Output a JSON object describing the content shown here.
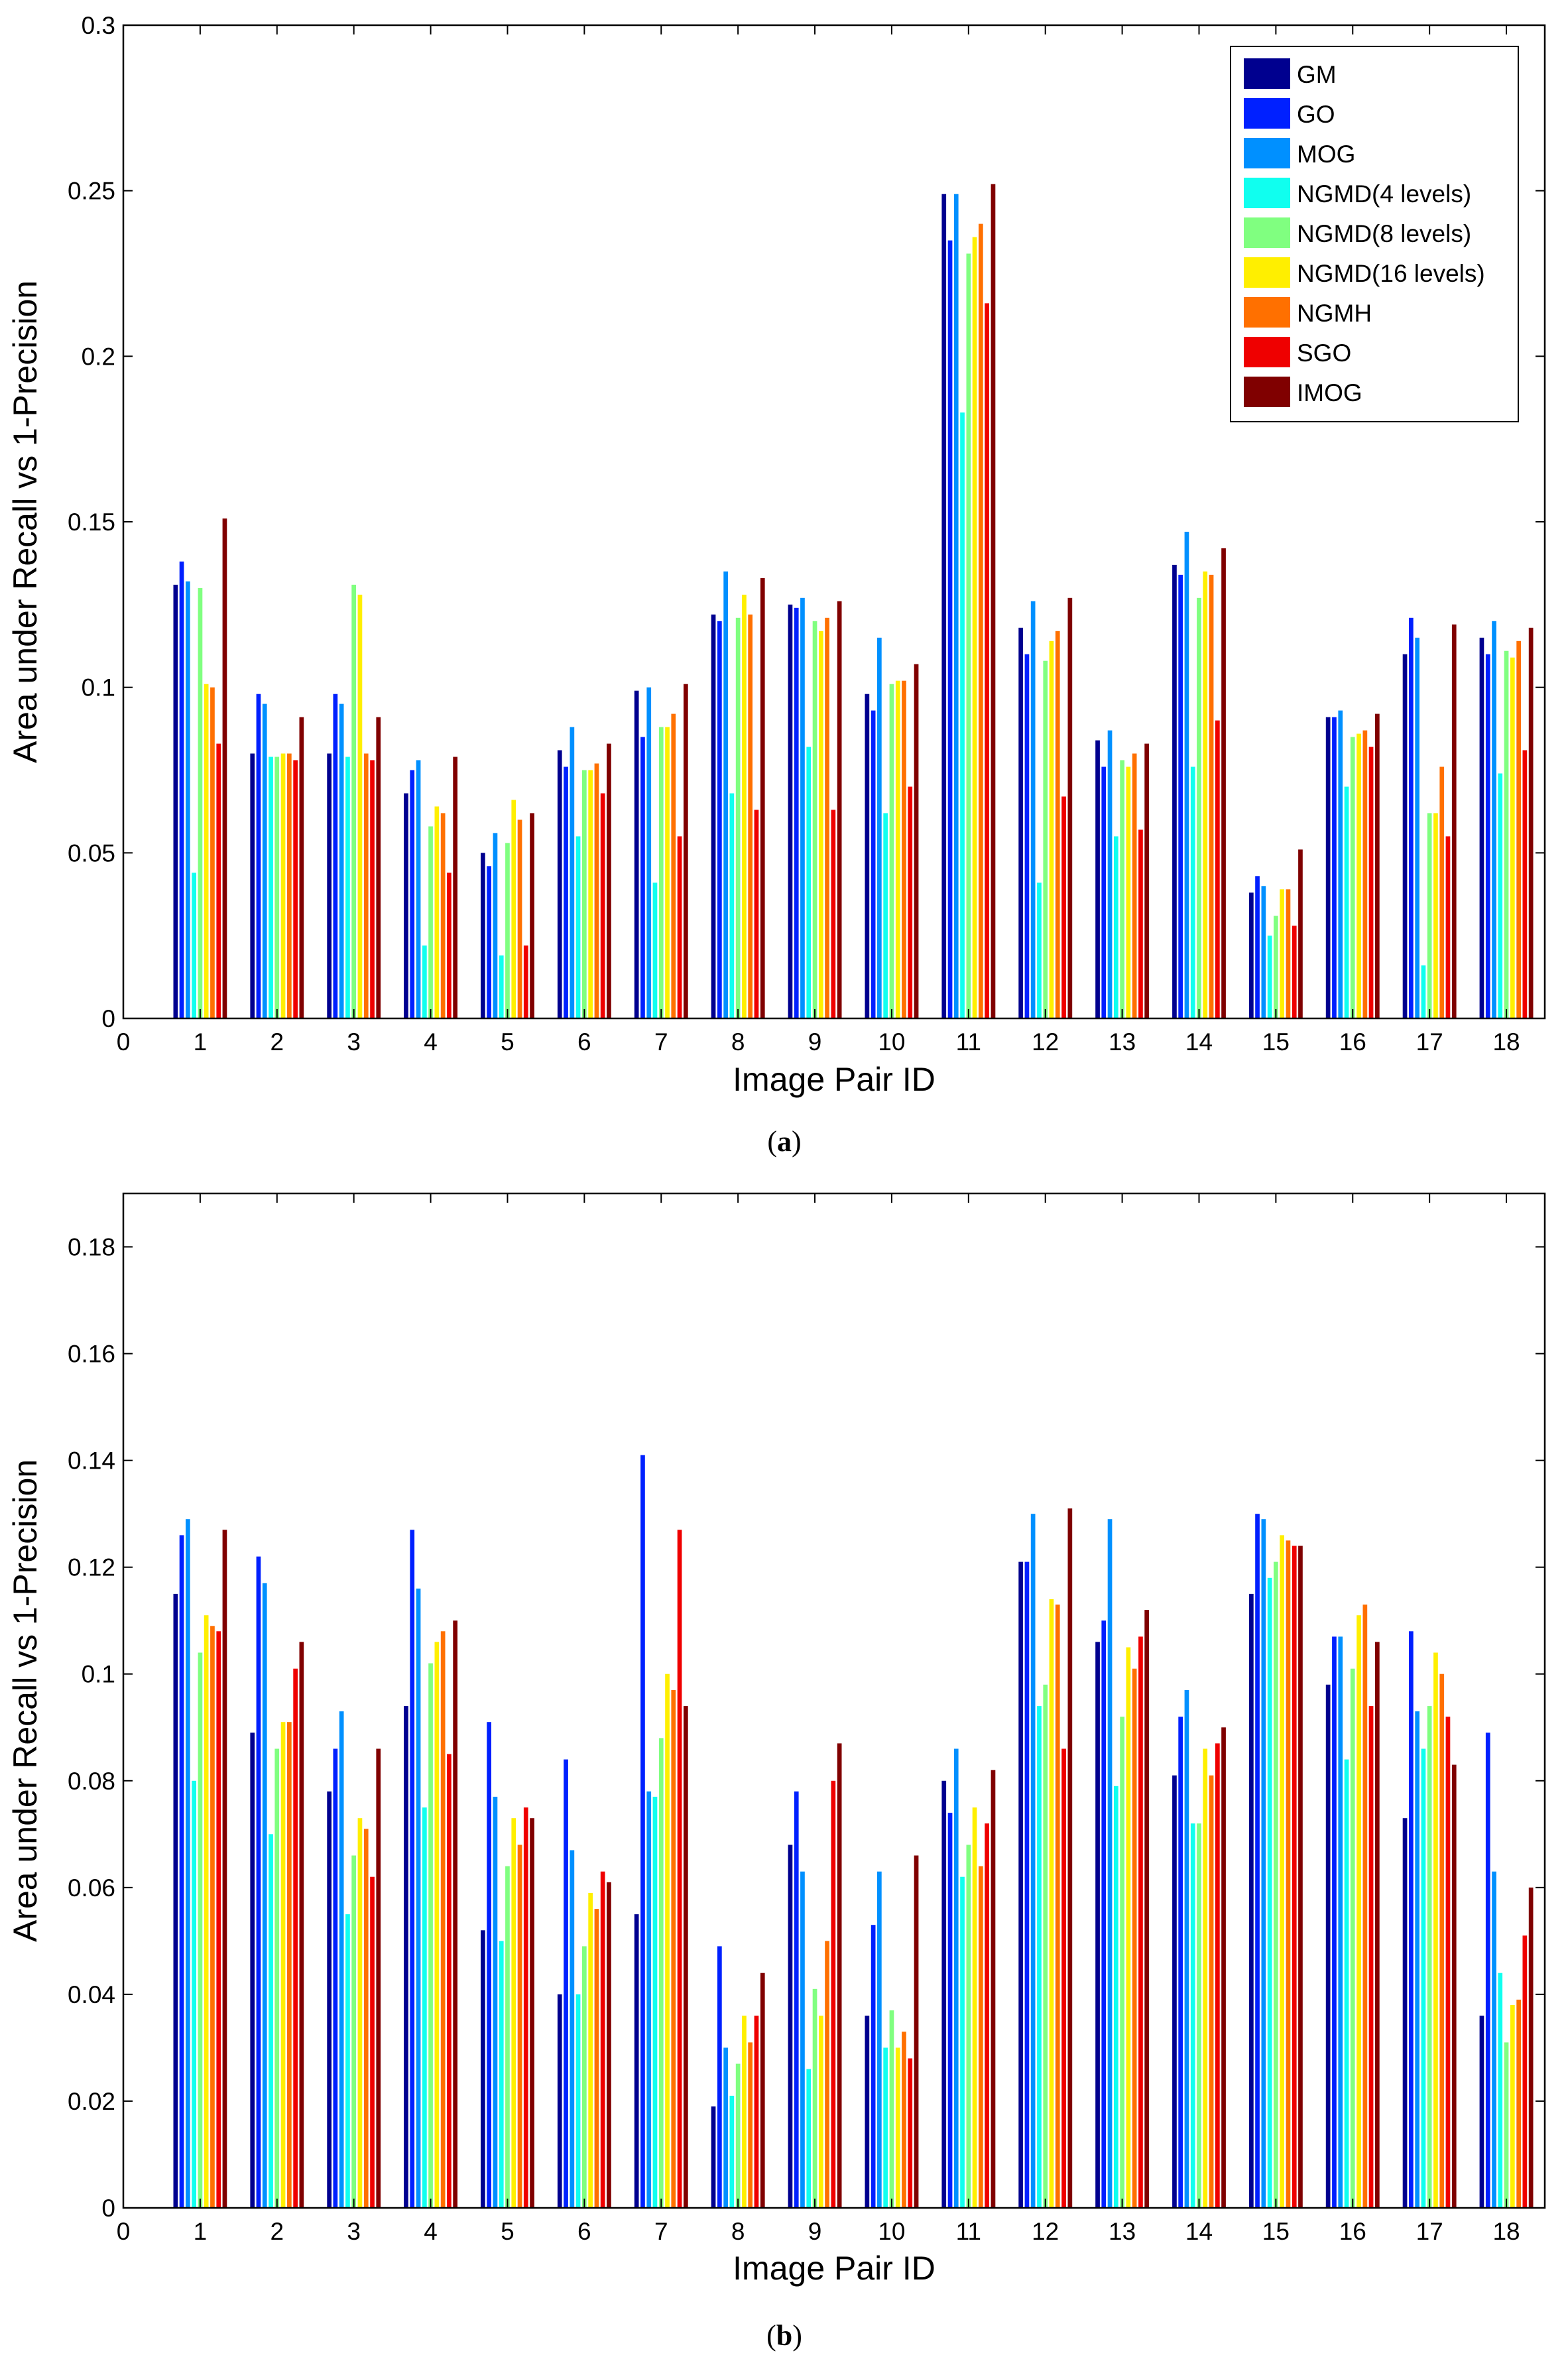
{
  "chart_data": [
    {
      "type": "bar",
      "panel": "a",
      "caption_prefix": "(",
      "caption_letter": "a",
      "caption_suffix": ")",
      "xlabel": "Image Pair ID",
      "ylabel": "Area under Recall vs 1-Precision",
      "xlim": [
        0,
        18.5
      ],
      "ylim": [
        0,
        0.3
      ],
      "x_ticks": [
        0,
        1,
        2,
        3,
        4,
        5,
        6,
        7,
        8,
        9,
        10,
        11,
        12,
        13,
        14,
        15,
        16,
        17,
        18
      ],
      "y_ticks": [
        0,
        0.05,
        0.1,
        0.15,
        0.2,
        0.25,
        0.3
      ],
      "y_tick_labels": [
        "0",
        "0.05",
        "0.1",
        "0.15",
        "0.2",
        "0.25",
        "0.3"
      ],
      "categories": [
        1,
        2,
        3,
        4,
        5,
        6,
        7,
        8,
        9,
        10,
        11,
        12,
        13,
        14,
        15,
        16,
        17,
        18
      ],
      "legend": "top-right",
      "series": [
        {
          "name": "GM",
          "color": "#00008f",
          "values": [
            0.131,
            0.08,
            0.08,
            0.068,
            0.05,
            0.081,
            0.099,
            0.122,
            0.125,
            0.098,
            0.249,
            0.118,
            0.084,
            0.137,
            0.038,
            0.091,
            0.11,
            0.115
          ]
        },
        {
          "name": "GO",
          "color": "#0020ff",
          "values": [
            0.138,
            0.098,
            0.098,
            0.075,
            0.046,
            0.076,
            0.085,
            0.12,
            0.124,
            0.093,
            0.235,
            0.11,
            0.076,
            0.134,
            0.043,
            0.091,
            0.121,
            0.11
          ]
        },
        {
          "name": "MOG",
          "color": "#0090ff",
          "values": [
            0.132,
            0.095,
            0.095,
            0.078,
            0.056,
            0.088,
            0.1,
            0.135,
            0.127,
            0.115,
            0.249,
            0.126,
            0.087,
            0.147,
            0.04,
            0.093,
            0.115,
            0.12
          ]
        },
        {
          "name": "NGMD(4 levels)",
          "color": "#10ffef",
          "values": [
            0.044,
            0.079,
            0.079,
            0.022,
            0.019,
            0.055,
            0.041,
            0.068,
            0.082,
            0.062,
            0.183,
            0.041,
            0.055,
            0.076,
            0.025,
            0.07,
            0.016,
            0.074
          ]
        },
        {
          "name": "NGMD(8 levels)",
          "color": "#80ff80",
          "values": [
            0.13,
            0.079,
            0.131,
            0.058,
            0.053,
            0.075,
            0.088,
            0.121,
            0.12,
            0.101,
            0.231,
            0.108,
            0.078,
            0.127,
            0.031,
            0.085,
            0.062,
            0.111
          ]
        },
        {
          "name": "NGMD(16 levels)",
          "color": "#ffef00",
          "values": [
            0.101,
            0.08,
            0.128,
            0.064,
            0.066,
            0.075,
            0.088,
            0.128,
            0.117,
            0.102,
            0.236,
            0.114,
            0.076,
            0.135,
            0.039,
            0.086,
            0.062,
            0.109
          ]
        },
        {
          "name": "NGMH",
          "color": "#ff7000",
          "values": [
            0.1,
            0.08,
            0.08,
            0.062,
            0.06,
            0.077,
            0.092,
            0.122,
            0.121,
            0.102,
            0.24,
            0.117,
            0.08,
            0.134,
            0.039,
            0.087,
            0.076,
            0.114
          ]
        },
        {
          "name": "SGO",
          "color": "#ef0000",
          "values": [
            0.083,
            0.078,
            0.078,
            0.044,
            0.022,
            0.068,
            0.055,
            0.063,
            0.063,
            0.07,
            0.216,
            0.067,
            0.057,
            0.09,
            0.028,
            0.082,
            0.055,
            0.081
          ]
        },
        {
          "name": "IMOG",
          "color": "#800000",
          "values": [
            0.151,
            0.091,
            0.091,
            0.079,
            0.062,
            0.083,
            0.101,
            0.133,
            0.126,
            0.107,
            0.252,
            0.127,
            0.083,
            0.142,
            0.051,
            0.092,
            0.119,
            0.118
          ]
        }
      ]
    },
    {
      "type": "bar",
      "panel": "b",
      "caption_prefix": "(",
      "caption_letter": "b",
      "caption_suffix": ")",
      "xlabel": "Image Pair ID",
      "ylabel": "Area under Recall vs 1-Precision",
      "xlim": [
        0,
        18.5
      ],
      "ylim": [
        0,
        0.19
      ],
      "x_ticks": [
        0,
        1,
        2,
        3,
        4,
        5,
        6,
        7,
        8,
        9,
        10,
        11,
        12,
        13,
        14,
        15,
        16,
        17,
        18
      ],
      "y_ticks": [
        0,
        0.02,
        0.04,
        0.06,
        0.08,
        0.1,
        0.12,
        0.14,
        0.16,
        0.18
      ],
      "y_tick_labels": [
        "0",
        "0.02",
        "0.04",
        "0.06",
        "0.08",
        "0.1",
        "0.12",
        "0.14",
        "0.16",
        "0.18"
      ],
      "categories": [
        1,
        2,
        3,
        4,
        5,
        6,
        7,
        8,
        9,
        10,
        11,
        12,
        13,
        14,
        15,
        16,
        17,
        18
      ],
      "legend": "none",
      "series": [
        {
          "name": "GM",
          "color": "#00008f",
          "values": [
            0.115,
            0.089,
            0.078,
            0.094,
            0.052,
            0.04,
            0.055,
            0.019,
            0.068,
            0.036,
            0.08,
            0.121,
            0.106,
            0.081,
            0.115,
            0.098,
            0.073,
            0.036
          ]
        },
        {
          "name": "GO",
          "color": "#0020ff",
          "values": [
            0.126,
            0.122,
            0.086,
            0.127,
            0.091,
            0.084,
            0.141,
            0.049,
            0.078,
            0.053,
            0.074,
            0.121,
            0.11,
            0.092,
            0.13,
            0.107,
            0.108,
            0.089
          ]
        },
        {
          "name": "MOG",
          "color": "#0090ff",
          "values": [
            0.129,
            0.117,
            0.093,
            0.116,
            0.077,
            0.067,
            0.078,
            0.03,
            0.063,
            0.063,
            0.086,
            0.13,
            0.129,
            0.097,
            0.129,
            0.107,
            0.093,
            0.063
          ]
        },
        {
          "name": "NGMD(4 levels)",
          "color": "#10ffef",
          "values": [
            0.08,
            0.07,
            0.055,
            0.075,
            0.05,
            0.04,
            0.077,
            0.021,
            0.026,
            0.03,
            0.062,
            0.094,
            0.079,
            0.072,
            0.118,
            0.084,
            0.086,
            0.044
          ]
        },
        {
          "name": "NGMD(8 levels)",
          "color": "#80ff80",
          "values": [
            0.104,
            0.086,
            0.066,
            0.102,
            0.064,
            0.049,
            0.088,
            0.027,
            0.041,
            0.037,
            0.068,
            0.098,
            0.092,
            0.072,
            0.121,
            0.101,
            0.094,
            0.031
          ]
        },
        {
          "name": "NGMD(16 levels)",
          "color": "#ffef00",
          "values": [
            0.111,
            0.091,
            0.073,
            0.106,
            0.073,
            0.059,
            0.1,
            0.036,
            0.036,
            0.03,
            0.075,
            0.114,
            0.105,
            0.086,
            0.126,
            0.111,
            0.104,
            0.038
          ]
        },
        {
          "name": "NGMH",
          "color": "#ff7000",
          "values": [
            0.109,
            0.091,
            0.071,
            0.108,
            0.068,
            0.056,
            0.097,
            0.031,
            0.05,
            0.033,
            0.064,
            0.113,
            0.101,
            0.081,
            0.125,
            0.113,
            0.1,
            0.039
          ]
        },
        {
          "name": "SGO",
          "color": "#ef0000",
          "values": [
            0.108,
            0.101,
            0.062,
            0.085,
            0.075,
            0.063,
            0.127,
            0.036,
            0.08,
            0.028,
            0.072,
            0.086,
            0.107,
            0.087,
            0.124,
            0.094,
            0.092,
            0.051
          ]
        },
        {
          "name": "IMOG",
          "color": "#800000",
          "values": [
            0.127,
            0.106,
            0.086,
            0.11,
            0.073,
            0.061,
            0.094,
            0.044,
            0.087,
            0.066,
            0.082,
            0.131,
            0.112,
            0.09,
            0.124,
            0.106,
            0.083,
            0.06
          ]
        }
      ]
    }
  ]
}
